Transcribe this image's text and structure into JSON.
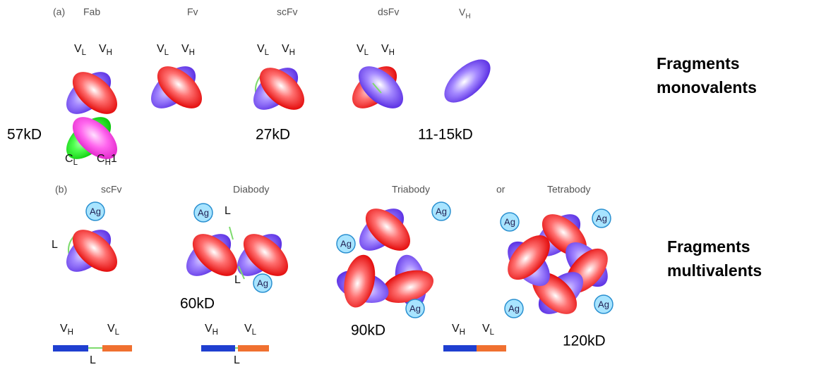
{
  "panel_a": {
    "label": "(a)",
    "titles": [
      "Fab",
      "Fv",
      "scFv",
      "dsFv"
    ],
    "vh_title": {
      "main": "V",
      "sub": "H"
    },
    "domain_labels": [
      {
        "main": "V",
        "sub": "L"
      },
      {
        "main": "V",
        "sub": "H"
      },
      {
        "main": "V",
        "sub": "L"
      },
      {
        "main": "V",
        "sub": "H"
      },
      {
        "main": "V",
        "sub": "L"
      },
      {
        "main": "V",
        "sub": "H"
      },
      {
        "main": "V",
        "sub": "L"
      },
      {
        "main": "V",
        "sub": "H"
      }
    ],
    "constant_labels": [
      {
        "main": "C",
        "sub": "L"
      },
      {
        "main": "C",
        "sub": "H",
        "suffix": "1"
      }
    ],
    "sizes": [
      "57kD",
      "27kD",
      "11-15kD"
    ]
  },
  "panel_b": {
    "label": "(b)",
    "titles": [
      "scFv",
      "Diabody",
      "Triabody",
      "or",
      "Tetrabody"
    ],
    "antigen_labels": [
      "Ag",
      "Ag",
      "Ag",
      "Ag",
      "Ag",
      "Ag",
      "Ag",
      "Ag",
      "Ag",
      "Ag"
    ],
    "linker_labels": [
      "L",
      "L",
      "L",
      "L",
      "L"
    ],
    "gene_labels": [
      {
        "main": "V",
        "sub": "H"
      },
      {
        "main": "V",
        "sub": "L"
      },
      {
        "main": "V",
        "sub": "H"
      },
      {
        "main": "V",
        "sub": "L"
      },
      {
        "main": "V",
        "sub": "H"
      },
      {
        "main": "V",
        "sub": "L"
      }
    ],
    "sizes": [
      "60kD",
      "90kD",
      "120kD"
    ]
  },
  "side_labels": {
    "monovalent": [
      "Fragments",
      "monovalents"
    ],
    "multivalent": [
      "Fragments",
      "multivalents"
    ]
  }
}
